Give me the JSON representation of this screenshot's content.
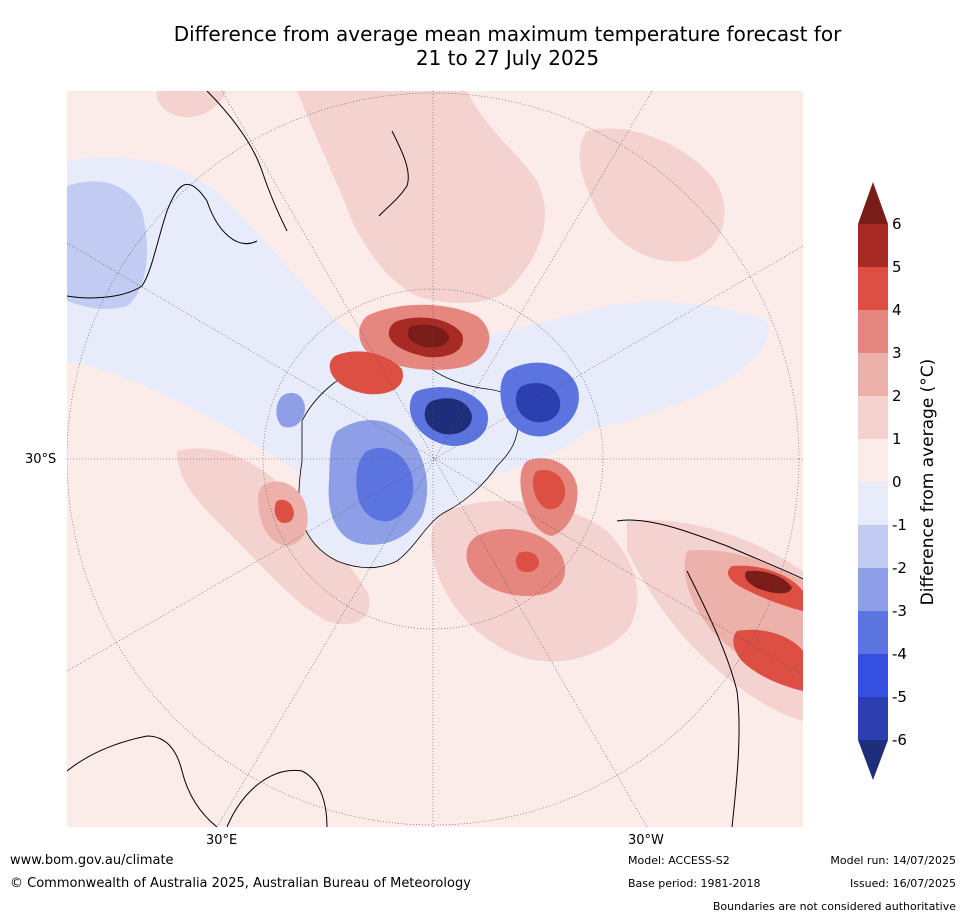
{
  "title": {
    "line1": "Difference from average mean maximum temperature forecast for",
    "line2": "21 to 27 July 2025"
  },
  "map": {
    "lat_label": "30°S",
    "lon_labels": {
      "east": "30°E",
      "west": "30°W"
    },
    "colors": {
      "minus6": "#1f2e7a",
      "minus5": "#2b3fb0",
      "minus4": "#3550e0",
      "minus3": "#5b74e0",
      "minus2": "#8e9fe8",
      "minus1": "#c2cbf2",
      "zero": "#e8ebfa",
      "plus0": "#fbecea",
      "plus1": "#f3d2d0",
      "plus2": "#ecb1ab",
      "plus3": "#e6877f",
      "plus4": "#dd4f43",
      "plus5": "#a82a24",
      "plus6": "#7a1c18"
    }
  },
  "colorbar": {
    "label": "Difference from average (°C)",
    "ticks": [
      "6",
      "5",
      "4",
      "3",
      "2",
      "1",
      "0",
      "-1",
      "-2",
      "-3",
      "-4",
      "-5",
      "-6"
    ]
  },
  "footer": {
    "url": "www.bom.gov.au/climate",
    "copyright": "© Commonwealth of Australia 2025, Australian Bureau of Meteorology",
    "model": "Model: ACCESS-S2",
    "base_period": "Base period: 1981-2018",
    "model_run": "Model run: 14/07/2025",
    "issued": "Issued: 16/07/2025",
    "boundaries": "Boundaries are not considered authoritative"
  }
}
